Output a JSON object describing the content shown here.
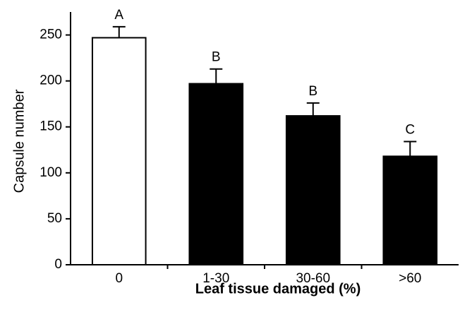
{
  "chart_data": {
    "type": "bar",
    "xlabel": "Leaf tissue damaged (%)",
    "ylabel": "Capsule number",
    "categories": [
      "0",
      "1-30",
      "30-60",
      ">60"
    ],
    "values": [
      247,
      197,
      162,
      118
    ],
    "errors": [
      12,
      16,
      14,
      16
    ],
    "annotations": [
      "A",
      "B",
      "B",
      "C"
    ],
    "colors": [
      "#ffffff",
      "#000000",
      "#000000",
      "#000000"
    ],
    "ylim": [
      0,
      275
    ],
    "yticks": [
      0,
      50,
      100,
      150,
      200,
      250
    ],
    "grid": false
  }
}
